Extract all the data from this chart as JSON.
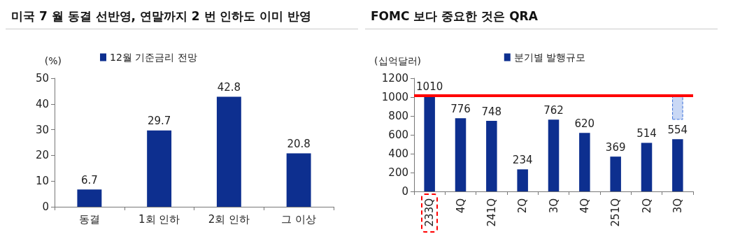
{
  "chart_data": [
    {
      "type": "bar",
      "title": "미국 7 월 동결 선반영, 연말까지 2 번 인하도 이미 반영",
      "ylabel": "(%)",
      "categories": [
        "동결",
        "1회 인하",
        "2회 인하",
        "그 이상"
      ],
      "series": [
        {
          "name": "12월 기준금리 전망",
          "color": "#0d2f8f",
          "values": [
            6.7,
            29.7,
            42.8,
            20.8
          ]
        }
      ],
      "ylim": [
        0,
        50
      ],
      "yticks": [
        0,
        10,
        20,
        30,
        40,
        50
      ],
      "grid": false,
      "legend": "top left",
      "data_labels": true
    },
    {
      "type": "bar",
      "title": "FOMC 보다 중요한 것은 QRA",
      "ylabel": "(십억달러)",
      "categories": [
        "233Q",
        "4Q",
        "241Q",
        "2Q",
        "3Q",
        "4Q",
        "251Q",
        "2Q",
        "3Q"
      ],
      "series": [
        {
          "name": "분기별 발행규모",
          "color": "#0d2f8f",
          "values": [
            1010,
            776,
            748,
            234,
            762,
            620,
            369,
            514,
            554
          ],
          "data_labels": true
        },
        {
          "color": "#c9d8f5",
          "values": [
            null,
            null,
            null,
            null,
            null,
            null,
            null,
            null,
            250
          ],
          "base": [
            null,
            null,
            null,
            null,
            null,
            null,
            null,
            null,
            760
          ],
          "line_style": "dashed"
        }
      ],
      "ylim": [
        0,
        1200
      ],
      "yticks": [
        0,
        200,
        400,
        600,
        800,
        1000,
        1200
      ],
      "grid": false,
      "legend": "top",
      "ref_lines": [
        {
          "axis": "y",
          "value": 1020,
          "color": "#ff0000"
        }
      ]
    }
  ]
}
